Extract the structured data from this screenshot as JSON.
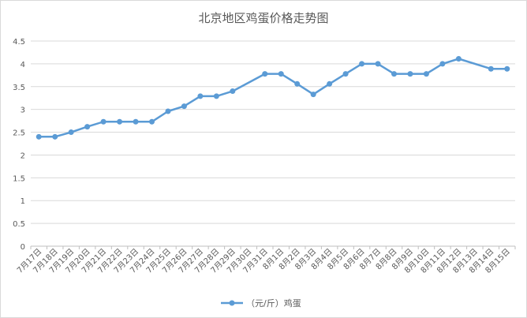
{
  "chart_data": {
    "type": "line",
    "title": "北京地区鸡蛋价格走势图",
    "xlabel": "",
    "ylabel": "",
    "ylim": [
      0,
      4.5
    ],
    "y_ticks": [
      0,
      0.5,
      1,
      1.5,
      2,
      2.5,
      3,
      3.5,
      4,
      4.5
    ],
    "grid": true,
    "legend_position": "bottom",
    "color": "#5b9bd5",
    "categories": [
      "7月17日",
      "7月18日",
      "7月19日",
      "7月20日",
      "7月21日",
      "7月22日",
      "7月23日",
      "7月24日",
      "7月25日",
      "7月26日",
      "7月27日",
      "7月28日",
      "7月29日",
      "7月30日",
      "7月31日",
      "8月1日",
      "8月2日",
      "8月3日",
      "8月4日",
      "8月5日",
      "8月6日",
      "8月7日",
      "8月8日",
      "8月9日",
      "8月10日",
      "8月11日",
      "8月12日",
      "8月13日",
      "8月14日",
      "8月15日"
    ],
    "series": [
      {
        "name": "（元/斤）鸡蛋",
        "values": [
          2.4,
          2.4,
          2.5,
          2.62,
          2.73,
          2.73,
          2.73,
          2.73,
          2.96,
          3.07,
          3.29,
          3.29,
          3.4,
          null,
          3.78,
          3.78,
          3.56,
          3.33,
          3.56,
          3.78,
          4.0,
          4.0,
          3.78,
          3.78,
          3.78,
          4.0,
          4.11,
          null,
          3.89,
          3.89
        ]
      }
    ]
  }
}
